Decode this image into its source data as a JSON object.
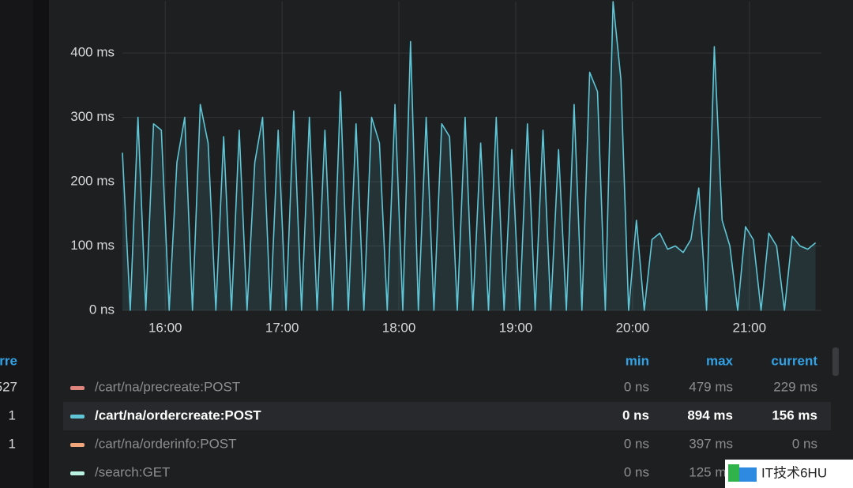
{
  "chart_data": {
    "type": "line",
    "x": [
      "15:38",
      "15:42",
      "15:46",
      "15:50",
      "15:54",
      "15:58",
      "16:02",
      "16:06",
      "16:10",
      "16:14",
      "16:18",
      "16:22",
      "16:26",
      "16:30",
      "16:34",
      "16:38",
      "16:42",
      "16:46",
      "16:50",
      "16:54",
      "16:58",
      "17:02",
      "17:06",
      "17:10",
      "17:14",
      "17:18",
      "17:22",
      "17:26",
      "17:30",
      "17:34",
      "17:38",
      "17:42",
      "17:46",
      "17:50",
      "17:54",
      "17:58",
      "18:02",
      "18:06",
      "18:10",
      "18:14",
      "18:18",
      "18:22",
      "18:26",
      "18:30",
      "18:34",
      "18:38",
      "18:42",
      "18:46",
      "18:50",
      "18:54",
      "18:58",
      "19:02",
      "19:06",
      "19:10",
      "19:14",
      "19:18",
      "19:22",
      "19:26",
      "19:30",
      "19:34",
      "19:38",
      "19:42",
      "19:46",
      "19:50",
      "19:54",
      "19:58",
      "20:02",
      "20:06",
      "20:10",
      "20:14",
      "20:18",
      "20:22",
      "20:26",
      "20:30",
      "20:34",
      "20:38",
      "20:42",
      "20:46",
      "20:50",
      "20:54",
      "20:58",
      "21:02",
      "21:06",
      "21:10",
      "21:14",
      "21:18",
      "21:22",
      "21:26",
      "21:30",
      "21:34"
    ],
    "xlim": [
      "15:38",
      "21:37"
    ],
    "xticks": [
      "16:00",
      "17:00",
      "18:00",
      "19:00",
      "20:00",
      "21:00"
    ],
    "ylim": [
      0,
      480
    ],
    "yticks": [
      {
        "value": 0,
        "label": "0 ns"
      },
      {
        "value": 100,
        "label": "100 ms"
      },
      {
        "value": 200,
        "label": "200 ms"
      },
      {
        "value": 300,
        "label": "300 ms"
      },
      {
        "value": 400,
        "label": "400 ms"
      }
    ],
    "grid": true,
    "columns": [
      "min",
      "max",
      "current"
    ],
    "series": [
      {
        "name": "/cart/na/precreate:POST",
        "color": "#e0847e",
        "min": "0 ns",
        "max": "479 ms",
        "current": "229 ms"
      },
      {
        "name": "/cart/na/ordercreate:POST",
        "color": "#5ec6d6",
        "min": "0 ns",
        "max": "894 ms",
        "current": "156 ms",
        "values": [
          245,
          0,
          300,
          0,
          290,
          280,
          0,
          230,
          300,
          0,
          320,
          260,
          0,
          270,
          0,
          280,
          0,
          230,
          300,
          0,
          280,
          0,
          310,
          0,
          300,
          0,
          280,
          0,
          340,
          0,
          290,
          0,
          300,
          260,
          0,
          320,
          0,
          418,
          0,
          300,
          0,
          290,
          270,
          0,
          300,
          0,
          260,
          0,
          300,
          0,
          250,
          0,
          290,
          0,
          280,
          0,
          250,
          0,
          320,
          0,
          370,
          340,
          0,
          480,
          360,
          0,
          140,
          0,
          110,
          120,
          95,
          100,
          90,
          110,
          190,
          0,
          410,
          140,
          100,
          0,
          130,
          110,
          0,
          120,
          100,
          0,
          115,
          100,
          95,
          105
        ]
      },
      {
        "name": "/cart/na/orderinfo:POST",
        "color": "#f2a57a",
        "min": "0 ns",
        "max": "397 ms",
        "current": "0 ns"
      },
      {
        "name": "/search:GET",
        "color": "#b9f2e1",
        "min": "0 ns",
        "max": "125 ms"
      }
    ]
  },
  "side_panel": {
    "header": "urre",
    "values": [
      "527",
      "1",
      "1"
    ]
  },
  "watermark": "IT技术6HU"
}
